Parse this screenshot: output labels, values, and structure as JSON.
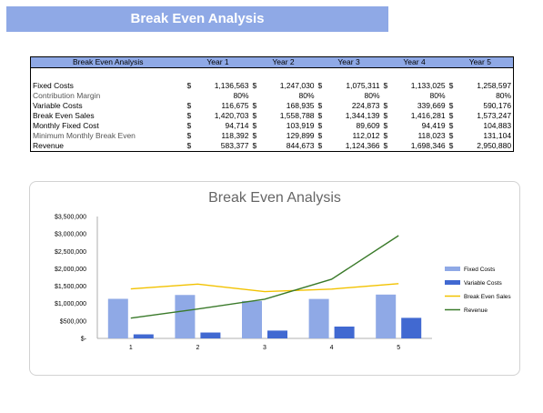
{
  "banner": {
    "title": "Break Even Analysis"
  },
  "table": {
    "headers": [
      "Break Even Analysis",
      "Year 1",
      "Year 2",
      "Year 3",
      "Year 4",
      "Year 5"
    ],
    "currency": "$",
    "rows": [
      {
        "label": "Fixed Costs",
        "currency": true,
        "values": [
          "1,136,563",
          "1,247,030",
          "1,075,311",
          "1,133,025",
          "1,258,597"
        ]
      },
      {
        "label": "Contribution Margin",
        "currency": false,
        "values": [
          "80%",
          "80%",
          "80%",
          "80%",
          "80%"
        ]
      },
      {
        "label": "Variable Costs",
        "currency": true,
        "values": [
          "116,675",
          "168,935",
          "224,873",
          "339,669",
          "590,176"
        ]
      },
      {
        "label": "Break Even Sales",
        "currency": true,
        "values": [
          "1,420,703",
          "1,558,788",
          "1,344,139",
          "1,416,281",
          "1,573,247"
        ]
      },
      {
        "label": "Monthly Fixed Cost",
        "currency": true,
        "values": [
          "94,714",
          "103,919",
          "89,609",
          "94,419",
          "104,883"
        ]
      },
      {
        "label": "Minimum Monthly Break Even",
        "currency": true,
        "values": [
          "118,392",
          "129,899",
          "112,012",
          "118,023",
          "131,104"
        ]
      },
      {
        "label": "Revenue",
        "currency": true,
        "values": [
          "583,377",
          "844,673",
          "1,124,366",
          "1,698,346",
          "2,950,880"
        ]
      }
    ]
  },
  "chart_data": {
    "type": "bar",
    "title": "Break Even Analysis",
    "categories": [
      "1",
      "2",
      "3",
      "4",
      "5"
    ],
    "ylim": [
      0,
      3500000
    ],
    "yticks": [
      0,
      500000,
      1000000,
      1500000,
      2000000,
      2500000,
      3000000,
      3500000
    ],
    "ytick_labels": [
      "$-",
      "$500,000",
      "$1,000,000",
      "$1,500,000",
      "$2,000,000",
      "$2,500,000",
      "$3,000,000",
      "$3,500,000"
    ],
    "legend_position": "right",
    "series": [
      {
        "name": "Fixed Costs",
        "kind": "bar",
        "color": "#8fa9e6",
        "values": [
          1136563,
          1247030,
          1075311,
          1133025,
          1258597
        ]
      },
      {
        "name": "Variable Costs",
        "kind": "bar",
        "color": "#4169d1",
        "values": [
          116675,
          168935,
          224873,
          339669,
          590176
        ]
      },
      {
        "name": "Break Even Sales",
        "kind": "line",
        "color": "#f2c200",
        "values": [
          1420703,
          1558788,
          1344139,
          1416281,
          1573247
        ]
      },
      {
        "name": "Revenue",
        "kind": "line",
        "color": "#3a7a2a",
        "values": [
          583377,
          844673,
          1124366,
          1698346,
          2950880
        ]
      }
    ]
  }
}
